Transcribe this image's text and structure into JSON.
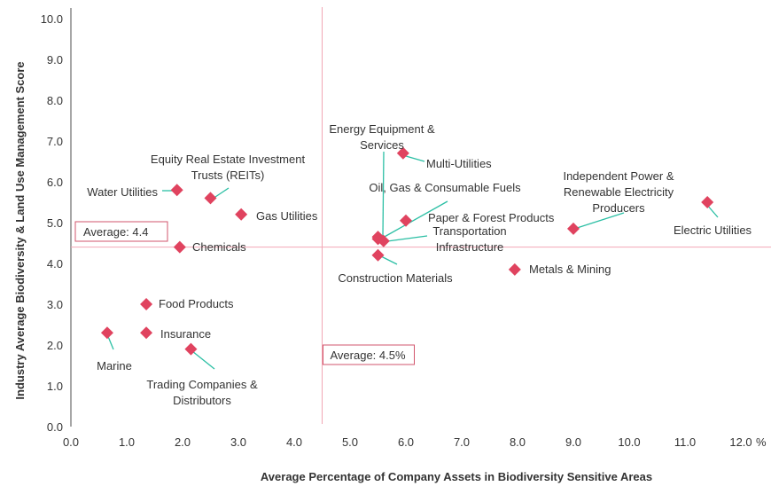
{
  "chart_data": {
    "type": "scatter",
    "title": "",
    "xlabel": "Average Percentage of Company Assets in Biodiversity Sensitive Areas",
    "ylabel": "Industry Average Biodiversity & Land Use Management Score",
    "xlim": [
      0,
      12
    ],
    "ylim": [
      0,
      10
    ],
    "x_unit": "%",
    "x_ticks": [
      "0.0",
      "1.0",
      "2.0",
      "3.0",
      "4.0",
      "5.0",
      "6.0",
      "7.0",
      "8.0",
      "9.0",
      "10.0",
      "11.0",
      "12.0"
    ],
    "y_ticks": [
      "0.0",
      "1.0",
      "2.0",
      "3.0",
      "4.0",
      "5.0",
      "6.0",
      "7.0",
      "8.0",
      "9.0",
      "10.0"
    ],
    "grid": false,
    "colors": {
      "marker": "#e0435f",
      "leader": "#2bbfa4",
      "average_line": "#f2a7b4",
      "average_box": "#d2556c"
    },
    "averages": {
      "y": {
        "value": 4.4,
        "label": "Average: 4.4"
      },
      "x": {
        "value": 4.5,
        "label": "Average: 4.5%"
      }
    },
    "points": [
      {
        "label": [
          "Water Utilities"
        ],
        "x": 1.9,
        "y": 5.8
      },
      {
        "label": [
          "Equity Real Estate Investment",
          "Trusts (REITs)"
        ],
        "x": 2.5,
        "y": 5.6
      },
      {
        "label": [
          "Gas Utilities"
        ],
        "x": 3.05,
        "y": 5.2
      },
      {
        "label": [
          "Chemicals"
        ],
        "x": 1.95,
        "y": 4.4
      },
      {
        "label": [
          "Food Products"
        ],
        "x": 1.35,
        "y": 3.0
      },
      {
        "label": [
          "Insurance"
        ],
        "x": 1.35,
        "y": 2.3
      },
      {
        "label": [
          "Marine"
        ],
        "x": 0.65,
        "y": 2.3
      },
      {
        "label": [
          "Trading Companies &",
          "Distributors"
        ],
        "x": 2.15,
        "y": 1.9
      },
      {
        "label": [
          "Multi-Utilities"
        ],
        "x": 5.95,
        "y": 6.7
      },
      {
        "label": [
          "Energy Equipment &",
          "Services"
        ],
        "x": 5.5,
        "y": 4.6
      },
      {
        "label": [
          "Oil, Gas & Consumable Fuels"
        ],
        "x": 5.5,
        "y": 4.65
      },
      {
        "label": [
          "Paper & Forest Products"
        ],
        "x": 6.0,
        "y": 5.05
      },
      {
        "label": [
          "Transportation",
          "Infrastructure"
        ],
        "x": 5.6,
        "y": 4.55
      },
      {
        "label": [
          "Construction Materials"
        ],
        "x": 5.5,
        "y": 4.2
      },
      {
        "label": [
          "Metals & Mining"
        ],
        "x": 7.95,
        "y": 3.85
      },
      {
        "label": [
          "Independent Power &",
          "Renewable Electricity",
          "Producers"
        ],
        "x": 9.0,
        "y": 4.85
      },
      {
        "label": [
          "Electric Utilities"
        ],
        "x": 11.4,
        "y": 5.5
      }
    ]
  }
}
